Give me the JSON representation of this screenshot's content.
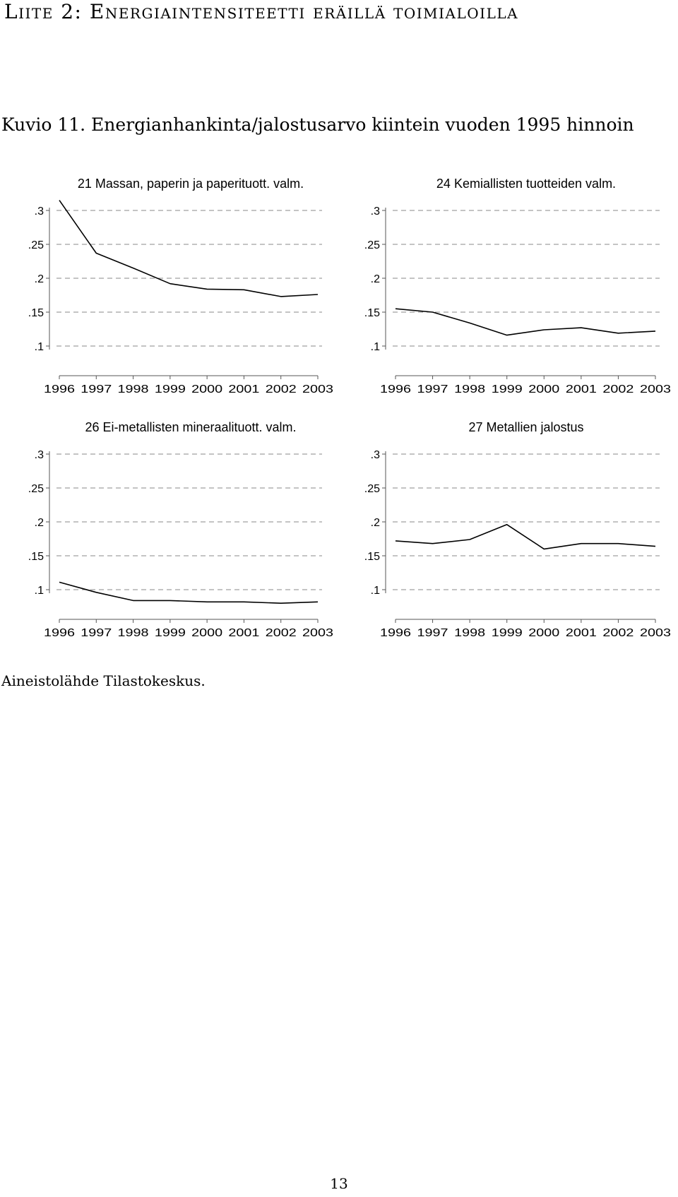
{
  "page": {
    "heading": "Liite 2: Energiaintensiteetti eräillä toimialoilla",
    "caption": "Kuvio 11. Energianhankinta/jalostusarvo kiintein vuoden 1995 hinnoin",
    "source": "Aineistolähde Tilastokeskus.",
    "page_number": "13"
  },
  "chart_data": [
    {
      "type": "line",
      "title": "21 Massan, paperin ja paperituott. valm.",
      "x": [
        1996,
        1997,
        1998,
        1999,
        2000,
        2001,
        2002,
        2003
      ],
      "series": [
        {
          "values": [
            0.315,
            0.237,
            0.215,
            0.192,
            0.184,
            0.183,
            0.173,
            0.176
          ]
        }
      ],
      "yticks": [
        ".1",
        ".15",
        ".2",
        ".25",
        ".3"
      ],
      "ylim": [
        0.1,
        0.3
      ],
      "grid": "dashed horizontal"
    },
    {
      "type": "line",
      "title": "24 Kemiallisten tuotteiden valm.",
      "x": [
        1996,
        1997,
        1998,
        1999,
        2000,
        2001,
        2002,
        2003
      ],
      "series": [
        {
          "values": [
            0.155,
            0.15,
            0.134,
            0.116,
            0.124,
            0.127,
            0.119,
            0.122
          ]
        }
      ],
      "yticks": [
        ".1",
        ".15",
        ".2",
        ".25",
        ".3"
      ],
      "ylim": [
        0.1,
        0.3
      ],
      "grid": "dashed horizontal"
    },
    {
      "type": "line",
      "title": "26 Ei-metallisten mineraalituott. valm.",
      "x": [
        1996,
        1997,
        1998,
        1999,
        2000,
        2001,
        2002,
        2003
      ],
      "series": [
        {
          "values": [
            0.111,
            0.096,
            0.084,
            0.084,
            0.082,
            0.082,
            0.08,
            0.082
          ]
        }
      ],
      "yticks": [
        ".1",
        ".15",
        ".2",
        ".25",
        ".3"
      ],
      "ylim": [
        0.1,
        0.3
      ],
      "grid": "dashed horizontal"
    },
    {
      "type": "line",
      "title": "27 Metallien jalostus",
      "x": [
        1996,
        1997,
        1998,
        1999,
        2000,
        2001,
        2002,
        2003
      ],
      "series": [
        {
          "values": [
            0.172,
            0.168,
            0.174,
            0.196,
            0.16,
            0.168,
            0.168,
            0.164
          ]
        }
      ],
      "yticks": [
        ".1",
        ".15",
        ".2",
        ".25",
        ".3"
      ],
      "ylim": [
        0.1,
        0.3
      ],
      "grid": "dashed horizontal"
    }
  ]
}
